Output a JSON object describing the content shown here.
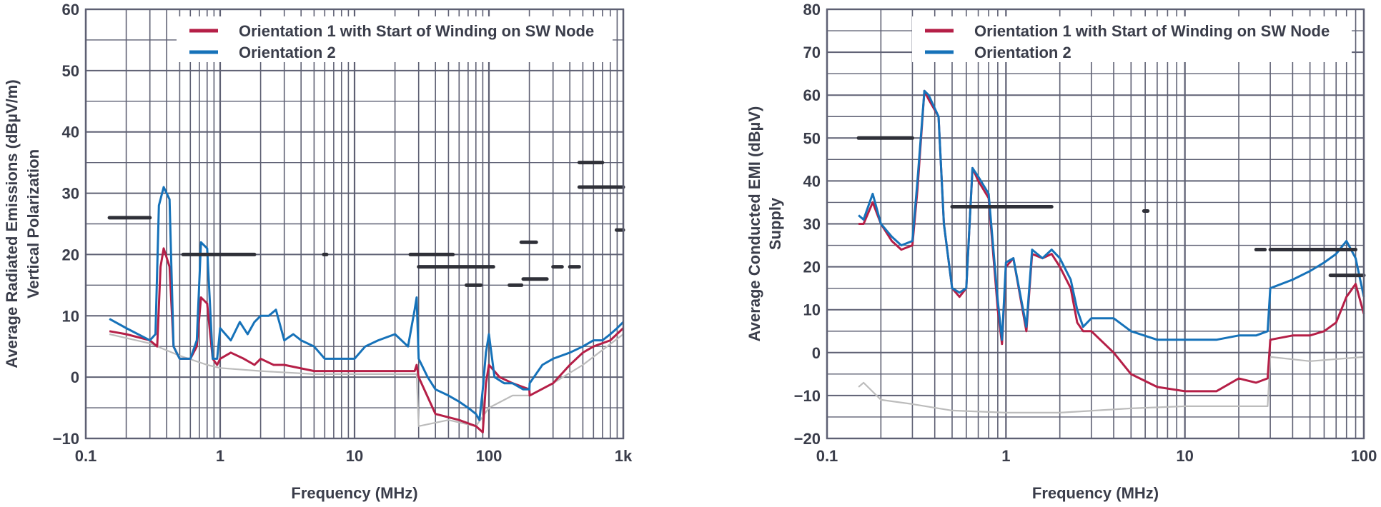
{
  "chart_data": [
    {
      "type": "line",
      "xscale": "log",
      "xlim": [
        0.1,
        1000
      ],
      "ylim": [
        -10,
        60
      ],
      "xlabel": "Frequency (MHz)",
      "ylabel": [
        "Average Radiated Emissions (dBµV/m)",
        "Vertical Polarization"
      ],
      "xticks": [
        {
          "v": 0.1,
          "label": "0.1"
        },
        {
          "v": 1,
          "label": "1"
        },
        {
          "v": 10,
          "label": "10"
        },
        {
          "v": 100,
          "label": "100"
        },
        {
          "v": 1000,
          "label": "1k"
        }
      ],
      "yticks": [
        -10,
        0,
        10,
        20,
        30,
        40,
        50,
        60
      ],
      "ytick_labels": [
        "−10",
        "0",
        "10",
        "20",
        "30",
        "40",
        "50",
        "60"
      ],
      "legend": [
        "Orientation 1 with Start of Winding on SW Node",
        "Orientation 2"
      ],
      "colors": {
        "series1": "#b51f47",
        "series2": "#1672b9",
        "floor": "#bcbcbc",
        "limit": "#2f3038",
        "grid": "#5e6073"
      },
      "series": [
        {
          "name": "Orientation 2",
          "color": "#1672b9",
          "x": [
            0.15,
            0.2,
            0.3,
            0.33,
            0.35,
            0.38,
            0.42,
            0.45,
            0.5,
            0.6,
            0.67,
            0.72,
            0.8,
            0.88,
            0.95,
            1.0,
            1.2,
            1.4,
            1.6,
            1.8,
            2.0,
            2.3,
            2.6,
            3.0,
            3.5,
            4.0,
            5.0,
            6.0,
            8.0,
            10,
            12,
            15,
            20,
            25,
            28,
            29,
            30,
            35,
            40,
            50,
            60,
            70,
            80,
            85,
            90,
            95,
            100,
            110,
            130,
            150,
            180,
            200,
            201,
            250,
            300,
            400,
            500,
            600,
            700,
            800,
            900,
            1000
          ],
          "y": [
            9.5,
            8,
            6,
            7,
            28,
            31,
            29,
            5,
            3,
            3,
            6,
            22,
            21,
            3,
            3,
            8,
            6,
            9,
            7,
            9,
            10,
            10,
            11,
            6,
            7,
            6,
            5,
            3,
            3,
            3,
            5,
            6,
            7,
            5,
            11,
            13,
            3,
            0,
            -2,
            -3,
            -4,
            -5,
            -6,
            -7,
            -2,
            4,
            7,
            0,
            -1,
            -1,
            -2,
            -2,
            -1,
            2,
            3,
            4,
            5,
            6,
            6,
            7,
            8,
            9
          ]
        },
        {
          "name": "Orientation 1 with Start of Winding on SW Node",
          "color": "#b51f47",
          "x": [
            0.15,
            0.2,
            0.3,
            0.34,
            0.36,
            0.38,
            0.42,
            0.45,
            0.5,
            0.6,
            0.67,
            0.72,
            0.8,
            0.88,
            0.95,
            1.0,
            1.2,
            1.5,
            1.8,
            2.0,
            2.5,
            3.0,
            5.0,
            10,
            20,
            28,
            29,
            30,
            40,
            60,
            80,
            90,
            95,
            100,
            120,
            150,
            200,
            201,
            300,
            400,
            500,
            600,
            800,
            1000
          ],
          "y": [
            7.5,
            7,
            6,
            5,
            18,
            21,
            18,
            5,
            3,
            3,
            5,
            13,
            12,
            3,
            2,
            3,
            4,
            3,
            2,
            3,
            2,
            2,
            1,
            1,
            1,
            1,
            2,
            0,
            -6,
            -7,
            -8,
            -9,
            -1,
            2,
            0,
            -1,
            -2,
            -3,
            -1,
            2,
            4,
            5,
            6,
            8
          ]
        },
        {
          "name": "Noise floor",
          "color": "#bcbcbc",
          "x": [
            0.15,
            0.3,
            0.5,
            0.8,
            1,
            2,
            5,
            10,
            20,
            28,
            29,
            30,
            50,
            80,
            100,
            150,
            200,
            201,
            300,
            500,
            1000
          ],
          "y": [
            7,
            5.5,
            3.5,
            2,
            1.5,
            1,
            0.5,
            0.5,
            0.5,
            0.5,
            0.5,
            -8,
            -7,
            -8,
            -5,
            -3,
            -3,
            -3,
            -1,
            2,
            7
          ]
        }
      ],
      "limits": [
        {
          "x": [
            0.15,
            0.3
          ],
          "y": 26
        },
        {
          "x": [
            0.53,
            1.8
          ],
          "y": 20
        },
        {
          "x": [
            5.9,
            6.2
          ],
          "y": 20
        },
        {
          "x": [
            26,
            54
          ],
          "y": 20
        },
        {
          "x": [
            30,
            108
          ],
          "y": 18
        },
        {
          "x": [
            68,
            87
          ],
          "y": 15
        },
        {
          "x": [
            142,
            175
          ],
          "y": 15
        },
        {
          "x": [
            174,
            225
          ],
          "y": 22
        },
        {
          "x": [
            180,
            270
          ],
          "y": 16
        },
        {
          "x": [
            300,
            350
          ],
          "y": 18
        },
        {
          "x": [
            400,
            470
          ],
          "y": 18
        },
        {
          "x": [
            470,
            700
          ],
          "y": 35
        },
        {
          "x": [
            470,
            1000
          ],
          "y": 31
        },
        {
          "x": [
            890,
            1000
          ],
          "y": 24
        }
      ]
    },
    {
      "type": "line",
      "xscale": "log",
      "xlim": [
        0.1,
        100
      ],
      "ylim": [
        -20,
        80
      ],
      "xlabel": "Frequency (MHz)",
      "ylabel": [
        "Average Conducted EMI (dBµV)",
        "Supply"
      ],
      "xticks": [
        {
          "v": 0.1,
          "label": "0.1"
        },
        {
          "v": 1,
          "label": "1"
        },
        {
          "v": 10,
          "label": "10"
        },
        {
          "v": 100,
          "label": "100"
        }
      ],
      "yticks": [
        -20,
        -10,
        0,
        10,
        20,
        30,
        40,
        50,
        60,
        70,
        80
      ],
      "ytick_labels": [
        "−20",
        "−10",
        "0",
        "10",
        "20",
        "30",
        "40",
        "50",
        "60",
        "70",
        "80"
      ],
      "legend": [
        "Orientation 1 with Start of Winding on SW Node",
        "Orientation 2"
      ],
      "colors": {
        "series1": "#b51f47",
        "series2": "#1672b9",
        "floor": "#bcbcbc",
        "limit": "#2f3038",
        "grid": "#5e6073"
      },
      "series": [
        {
          "name": "Orientation 2",
          "color": "#1672b9",
          "x": [
            0.15,
            0.16,
            0.18,
            0.2,
            0.23,
            0.26,
            0.3,
            0.32,
            0.35,
            0.37,
            0.42,
            0.45,
            0.5,
            0.55,
            0.6,
            0.65,
            0.7,
            0.8,
            0.9,
            0.95,
            1.0,
            1.1,
            1.3,
            1.4,
            1.6,
            1.8,
            2.0,
            2.3,
            2.5,
            2.7,
            3.0,
            4.0,
            5.0,
            7.0,
            10,
            15,
            20,
            25,
            29,
            30,
            40,
            50,
            60,
            70,
            80,
            90,
            100
          ],
          "y": [
            32,
            31,
            37,
            30,
            27,
            25,
            26,
            40,
            61,
            60,
            55,
            30,
            15,
            14,
            15,
            43,
            41,
            37,
            12,
            3,
            21,
            22,
            6,
            24,
            22,
            24,
            22,
            17,
            10,
            6,
            8,
            8,
            5,
            3,
            3,
            3,
            4,
            4,
            5,
            15,
            17,
            19,
            21,
            23,
            26,
            22,
            13
          ]
        },
        {
          "name": "Orientation 1 with Start of Winding on SW Node",
          "color": "#b51f47",
          "x": [
            0.15,
            0.16,
            0.18,
            0.2,
            0.23,
            0.26,
            0.3,
            0.32,
            0.35,
            0.37,
            0.42,
            0.45,
            0.5,
            0.55,
            0.6,
            0.65,
            0.7,
            0.8,
            0.9,
            0.95,
            1.0,
            1.1,
            1.3,
            1.4,
            1.6,
            1.8,
            2.0,
            2.3,
            2.5,
            2.7,
            3.0,
            4.0,
            5.0,
            7.0,
            10,
            15,
            20,
            25,
            29,
            30,
            40,
            50,
            60,
            70,
            80,
            90,
            100
          ],
          "y": [
            30,
            30,
            35,
            30,
            26,
            24,
            25,
            38,
            61,
            59,
            55,
            30,
            15,
            13,
            15,
            43,
            40,
            36,
            10,
            2,
            20,
            22,
            5,
            23,
            22,
            23,
            20,
            15,
            7,
            5,
            5,
            0,
            -5,
            -8,
            -9,
            -9,
            -6,
            -7,
            -6,
            3,
            4,
            4,
            5,
            7,
            13,
            16,
            9
          ]
        },
        {
          "name": "Noise floor",
          "color": "#bcbcbc",
          "x": [
            0.15,
            0.16,
            0.2,
            0.3,
            0.5,
            1.0,
            2.0,
            5.0,
            10,
            20,
            29,
            30,
            50,
            100
          ],
          "y": [
            -8,
            -7,
            -11,
            -12,
            -13.5,
            -14,
            -14,
            -13,
            -12.5,
            -12.5,
            -12.5,
            -1,
            -2,
            -1
          ]
        }
      ],
      "limits": [
        {
          "x": [
            0.15,
            0.3
          ],
          "y": 50
        },
        {
          "x": [
            0.5,
            1.8
          ],
          "y": 34
        },
        {
          "x": [
            5.9,
            6.2
          ],
          "y": 33
        },
        {
          "x": [
            25,
            28
          ],
          "y": 24
        },
        {
          "x": [
            30,
            90
          ],
          "y": 24
        },
        {
          "x": [
            65,
            100
          ],
          "y": 18
        }
      ]
    }
  ]
}
